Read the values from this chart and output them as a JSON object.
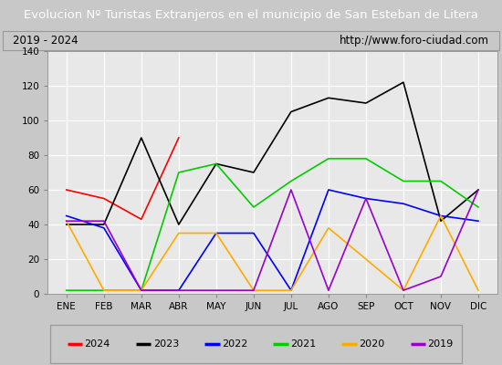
{
  "title": "Evolucion Nº Turistas Extranjeros en el municipio de San Esteban de Litera",
  "subtitle_left": "2019 - 2024",
  "subtitle_right": "http://www.foro-ciudad.com",
  "months": [
    "ENE",
    "FEB",
    "MAR",
    "ABR",
    "MAY",
    "JUN",
    "JUL",
    "AGO",
    "SEP",
    "OCT",
    "NOV",
    "DIC"
  ],
  "ylim": [
    0,
    140
  ],
  "yticks": [
    0,
    20,
    40,
    60,
    80,
    100,
    120,
    140
  ],
  "series": {
    "2024": {
      "color": "#ff0000",
      "values": [
        60,
        55,
        43,
        90,
        null,
        null,
        null,
        null,
        null,
        null,
        null,
        null
      ]
    },
    "2023": {
      "color": "#000000",
      "values": [
        40,
        40,
        90,
        40,
        75,
        70,
        105,
        113,
        110,
        122,
        42,
        60
      ]
    },
    "2022": {
      "color": "#0000ff",
      "values": [
        45,
        38,
        2,
        2,
        35,
        35,
        2,
        60,
        55,
        52,
        45,
        42
      ]
    },
    "2021": {
      "color": "#00cc00",
      "values": [
        2,
        2,
        2,
        70,
        75,
        50,
        65,
        78,
        78,
        65,
        65,
        50
      ]
    },
    "2020": {
      "color": "#ffaa00",
      "values": [
        42,
        2,
        2,
        35,
        35,
        2,
        2,
        38,
        20,
        2,
        45,
        2
      ]
    },
    "2019": {
      "color": "#9900cc",
      "values": [
        42,
        42,
        2,
        2,
        2,
        2,
        60,
        2,
        55,
        2,
        10,
        60
      ]
    }
  },
  "title_bg_color": "#4472c4",
  "title_font_color": "#ffffff",
  "subtitle_bg_color": "#e8e8e8",
  "plot_bg_color": "#e8e8e8",
  "grid_color": "#ffffff",
  "border_color": "#999999",
  "fig_bg_color": "#c8c8c8"
}
